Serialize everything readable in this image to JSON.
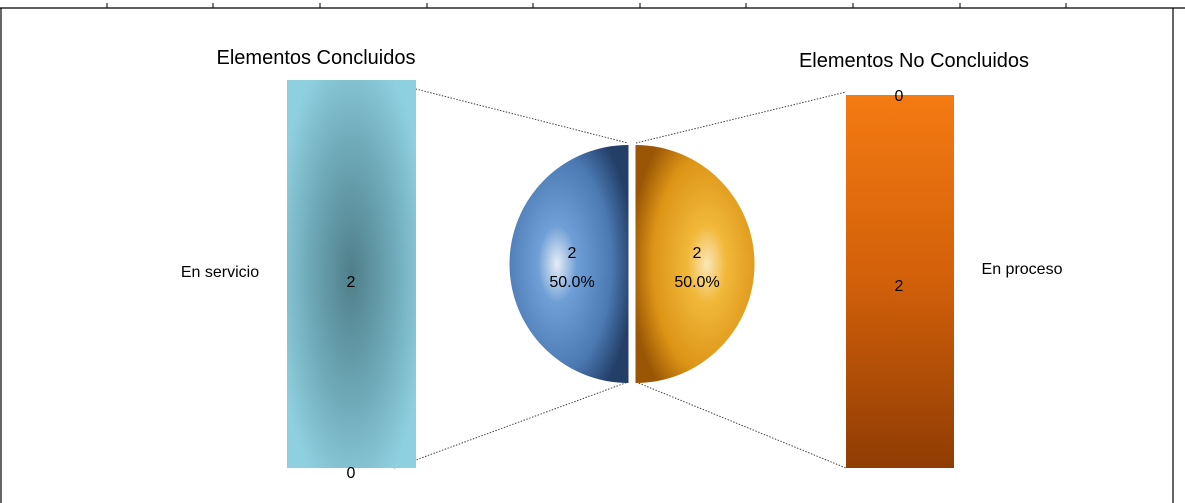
{
  "chart_data": {
    "type": "pie",
    "variant": "bar-of-pie (split into two stacked bars)",
    "pie": {
      "slices": [
        {
          "label_value": "2",
          "label_percent": "50.0%",
          "value": 2,
          "percent": 50.0,
          "color": "#4f81bd"
        },
        {
          "label_value": "2",
          "label_percent": "50.0%",
          "value": 2,
          "percent": 50.0,
          "color": "#e2a11e"
        }
      ]
    },
    "bars": [
      {
        "title": "Elementos Concluidos",
        "category": "En servicio",
        "segments": [
          {
            "label": "2",
            "value": 2
          },
          {
            "label": "0",
            "value": 0
          }
        ],
        "color": "#8ecfe0"
      },
      {
        "title": "Elementos No Concluidos",
        "category": "En proceso",
        "segments": [
          {
            "label": "0",
            "value": 0
          },
          {
            "label": "2",
            "value": 2
          }
        ],
        "color": "#f07010"
      }
    ]
  }
}
